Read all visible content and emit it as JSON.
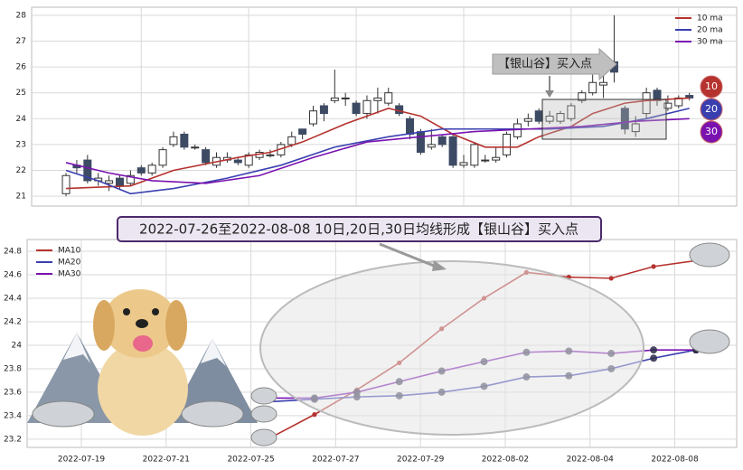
{
  "banner": "2022-07-26至2022-08-08 10日,20日,30日均线形成【银山谷】买入点",
  "chart_data": [
    {
      "type": "candlestick",
      "annotation": "【银山谷】买入点",
      "badges": [
        {
          "label": "10",
          "color": "#b5322e"
        },
        {
          "label": "20",
          "color": "#3a3fb0"
        },
        {
          "label": "30",
          "color": "#7a12b0"
        }
      ],
      "candles": {
        "open": [
          21.1,
          22.2,
          22.4,
          21.6,
          21.5,
          21.7,
          21.5,
          22.1,
          21.9,
          22.2,
          23.0,
          23.4,
          22.9,
          22.8,
          22.2,
          22.4,
          22.4,
          22.2,
          22.5,
          22.6,
          22.6,
          23.0,
          23.6,
          23.8,
          24.5,
          24.7,
          24.8,
          24.6,
          24.2,
          24.7,
          24.6,
          24.5,
          24.0,
          23.5,
          22.9,
          23.3,
          23.3,
          22.2,
          22.2,
          22.4,
          22.4,
          22.6,
          23.3,
          23.9,
          24.3,
          23.9,
          23.9,
          24.0,
          24.7,
          25.0,
          25.3,
          26.2,
          24.4,
          23.5,
          24.2,
          25.1,
          24.4,
          24.5,
          24.9
        ],
        "close": [
          21.8,
          22.1,
          21.6,
          21.7,
          21.6,
          21.4,
          21.8,
          21.9,
          22.2,
          22.8,
          23.3,
          22.9,
          22.9,
          22.3,
          22.5,
          22.5,
          22.3,
          22.6,
          22.7,
          22.6,
          23.0,
          23.3,
          23.4,
          24.3,
          24.2,
          24.8,
          24.8,
          24.2,
          24.7,
          24.8,
          25.0,
          24.2,
          23.4,
          22.7,
          23.0,
          23.0,
          22.2,
          22.3,
          23.0,
          22.4,
          22.5,
          23.4,
          23.8,
          24.0,
          23.9,
          24.1,
          24.2,
          24.5,
          25.0,
          25.4,
          25.4,
          25.8,
          23.6,
          23.8,
          25.0,
          24.7,
          24.6,
          24.8,
          24.8
        ],
        "high": [
          21.9,
          22.4,
          22.6,
          21.9,
          21.8,
          21.8,
          22.0,
          22.2,
          22.3,
          22.9,
          23.5,
          23.5,
          23.0,
          22.9,
          22.7,
          22.7,
          22.5,
          22.7,
          22.8,
          22.8,
          23.1,
          23.5,
          23.6,
          24.5,
          24.6,
          25.9,
          25.0,
          24.7,
          24.9,
          25.2,
          25.2,
          24.6,
          24.1,
          23.6,
          23.6,
          23.4,
          23.4,
          22.6,
          23.1,
          22.6,
          22.9,
          23.5,
          24.0,
          24.2,
          24.4,
          24.3,
          24.3,
          24.6,
          25.1,
          25.7,
          25.7,
          28.0,
          24.5,
          24.1,
          25.2,
          25.2,
          24.9,
          24.9,
          25.0
        ],
        "low": [
          21.0,
          21.9,
          21.5,
          21.4,
          21.2,
          21.3,
          21.4,
          21.8,
          21.8,
          22.1,
          22.9,
          22.8,
          22.8,
          22.2,
          22.1,
          22.3,
          22.2,
          22.1,
          22.4,
          22.5,
          22.5,
          22.9,
          23.2,
          23.7,
          23.9,
          24.6,
          24.5,
          24.1,
          24.0,
          24.2,
          24.5,
          24.1,
          23.2,
          22.6,
          22.8,
          22.9,
          22.1,
          22.1,
          22.1,
          22.3,
          22.3,
          22.5,
          23.2,
          23.7,
          23.8,
          23.8,
          23.8,
          23.9,
          24.6,
          24.9,
          24.8,
          25.4,
          23.4,
          23.3,
          24.0,
          24.5,
          24.3,
          24.4,
          24.7
        ]
      },
      "series": [
        {
          "name": "10 ma",
          "color": "#b5322e",
          "x": [
            0,
            6,
            10,
            16,
            19,
            22,
            26,
            30,
            33,
            36,
            39,
            42,
            44,
            47,
            49,
            52,
            54,
            58
          ],
          "values": [
            21.3,
            21.4,
            22.0,
            22.5,
            22.7,
            23.1,
            23.8,
            24.4,
            24.1,
            23.4,
            22.9,
            22.9,
            23.3,
            23.7,
            24.2,
            24.6,
            24.7,
            24.8
          ]
        },
        {
          "name": "20 ma",
          "color": "#3a3fb0",
          "x": [
            0,
            3,
            6,
            10,
            15,
            20,
            25,
            30,
            35,
            40,
            45,
            50,
            54,
            58
          ],
          "values": [
            22.0,
            21.6,
            21.1,
            21.3,
            21.7,
            22.2,
            22.9,
            23.3,
            23.6,
            23.6,
            23.6,
            23.7,
            24.0,
            24.4
          ]
        },
        {
          "name": "30 ma",
          "color": "#7a12b0",
          "x": [
            0,
            4,
            8,
            13,
            18,
            23,
            28,
            33,
            38,
            43,
            48,
            53,
            58
          ],
          "values": [
            22.3,
            21.9,
            21.6,
            21.5,
            21.8,
            22.5,
            23.1,
            23.3,
            23.5,
            23.6,
            23.7,
            23.9,
            24.0
          ]
        }
      ],
      "up_color": "#ffffff",
      "down_color": "#3d4a63",
      "xlim": [
        -3.2,
        62.4
      ],
      "xticks": [
        7,
        17,
        27,
        37,
        47,
        57
      ],
      "ylim": [
        20.62,
        28.31
      ],
      "yticks": [
        21,
        22,
        23,
        24,
        25,
        26,
        27,
        28
      ],
      "grid": true,
      "legend": "upper right"
    },
    {
      "type": "line",
      "xlim": [
        -1.28,
        15.46
      ],
      "xticks": [
        {
          "value": 0,
          "label": "2022-07-19"
        },
        {
          "value": 2,
          "label": "2022-07-21"
        },
        {
          "value": 4,
          "label": "2022-07-25"
        },
        {
          "value": 6,
          "label": "2022-07-27"
        },
        {
          "value": 8,
          "label": "2022-07-29"
        },
        {
          "value": 10,
          "label": "2022-08-02"
        },
        {
          "value": 12,
          "label": "2022-08-04"
        },
        {
          "value": 14,
          "label": "2022-08-08"
        }
      ],
      "ylim": [
        23.13,
        24.9
      ],
      "yticks": [
        23.2,
        23.4,
        23.6,
        23.8,
        24.0,
        24.2,
        24.4,
        24.6,
        24.8
      ],
      "series": [
        {
          "name": "MA10",
          "color": "#b5322e",
          "x": [
            4.5,
            5.5,
            6.5,
            7.5,
            8.5,
            9.5,
            10.5,
            11.5,
            12.5,
            13.5,
            14.5
          ],
          "values": [
            23.22,
            23.41,
            23.62,
            23.85,
            24.14,
            24.4,
            24.62,
            24.58,
            24.57,
            24.67,
            24.72
          ]
        },
        {
          "name": "MA20",
          "color": "#3a3fb0",
          "x": [
            4.5,
            5.5,
            6.5,
            7.5,
            8.5,
            9.5,
            10.5,
            11.5,
            12.5,
            13.5,
            14.5
          ],
          "values": [
            23.52,
            23.54,
            23.56,
            23.57,
            23.6,
            23.65,
            23.73,
            23.74,
            23.8,
            23.89,
            23.96
          ]
        },
        {
          "name": "MA30",
          "color": "#7a12b0",
          "x": [
            4.5,
            5.5,
            6.5,
            7.5,
            8.5,
            9.5,
            10.5,
            11.5,
            12.5,
            13.5,
            14.5
          ],
          "values": [
            23.55,
            23.55,
            23.6,
            23.69,
            23.78,
            23.86,
            23.94,
            23.95,
            23.93,
            23.96,
            23.96
          ]
        }
      ],
      "grid": true,
      "legend": "upper left"
    }
  ]
}
